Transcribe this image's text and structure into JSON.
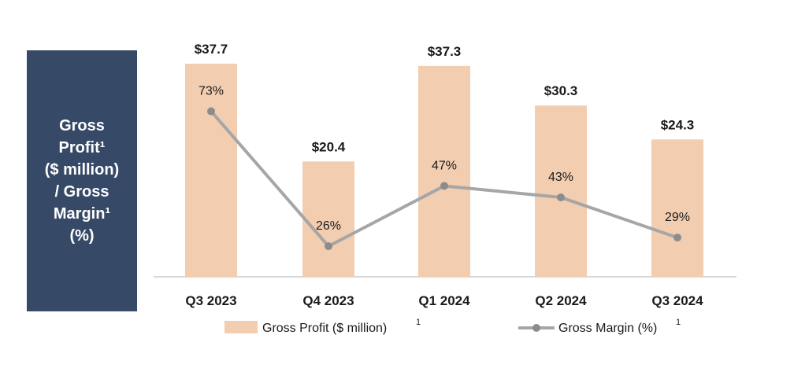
{
  "side_panel": {
    "title": "Gross\nProfit¹\n($ million)\n/ Gross\nMargin¹\n(%)"
  },
  "chart_data": {
    "type": "bar",
    "categories": [
      "Q3 2023",
      "Q4 2023",
      "Q1 2024",
      "Q2 2024",
      "Q3 2024"
    ],
    "series": [
      {
        "name": "Gross Profit ($ million)",
        "type": "bar",
        "values": [
          37.7,
          20.4,
          37.3,
          30.3,
          24.3
        ],
        "labels": [
          "$37.7",
          "$20.4",
          "$37.3",
          "$30.3",
          "$24.3"
        ],
        "color": "#f3cdb0"
      },
      {
        "name": "Gross Margin (%)",
        "type": "line",
        "values": [
          73,
          26,
          47,
          43,
          29
        ],
        "labels": [
          "73%",
          "26%",
          "47%",
          "43%",
          "29%"
        ],
        "color": "#a6a6a6"
      }
    ],
    "legend": {
      "position": "bottom",
      "items": [
        {
          "label": "Gross Profit ($ million)",
          "sup": "1"
        },
        {
          "label": "Gross Margin (%)",
          "sup": "1"
        }
      ]
    },
    "grid": false
  }
}
